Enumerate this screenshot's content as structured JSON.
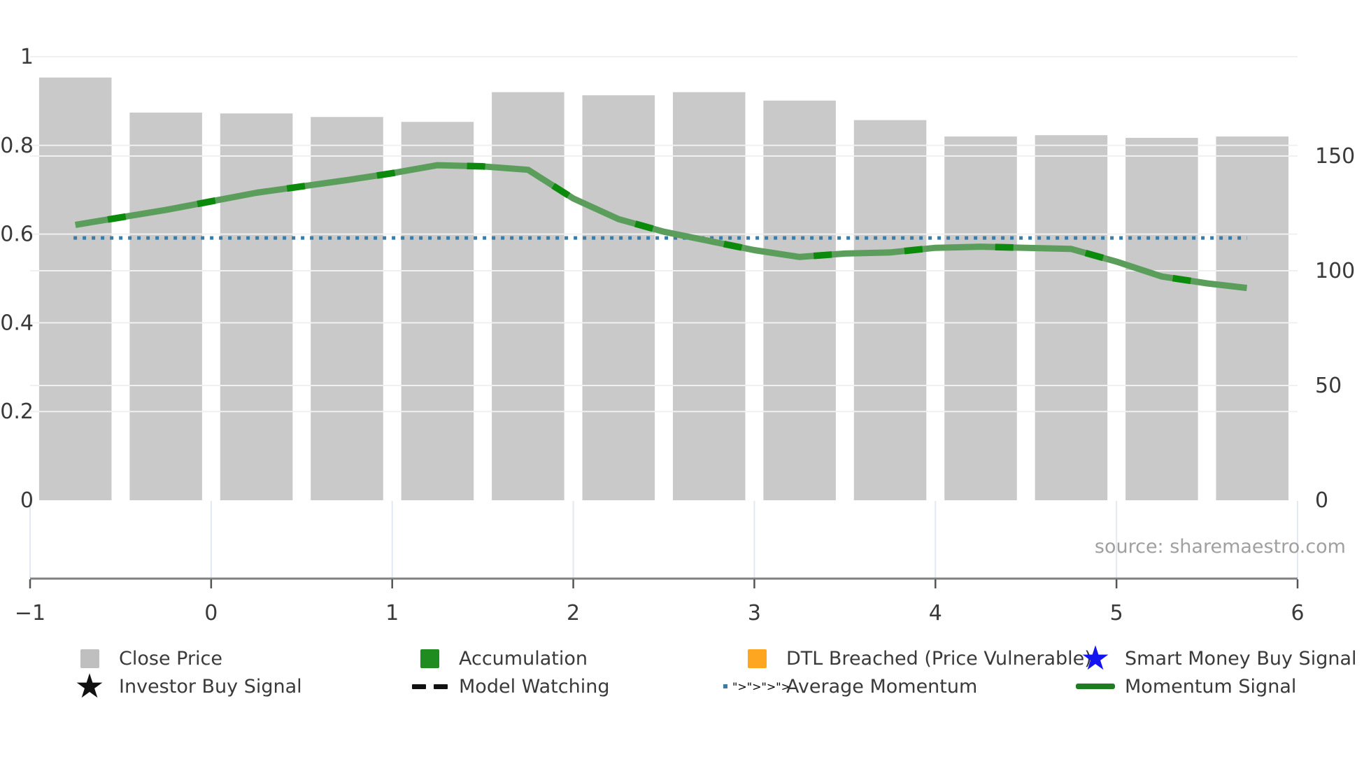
{
  "source": {
    "label": "source: sharemaestro.com"
  },
  "colors": {
    "bar": "#c9c9c9",
    "momentum_line": "#5b9e5b",
    "accumulation_dash": "#0c8a0c",
    "average_momentum": "#3a7ca8",
    "gridline": "#f0f0f0",
    "lower_gridline": "#e2e8f4",
    "axis_spine": "#808080",
    "axis_tick": "#555555",
    "axis_text": "#3a3a3a",
    "legend_close_price": "#bfbfbf",
    "legend_accumulation": "#1e8c1e",
    "legend_dtl_breached": "#ffa621",
    "legend_smart_money_star": "#1414f0",
    "legend_investor_star": "#111111",
    "legend_model_watching": "#111111",
    "legend_momentum_signal": "#1e7d1e"
  },
  "chart_data": {
    "type": "bar+line",
    "grid": true,
    "legend_position": "bottom",
    "x_axis": {
      "range": [
        -1,
        6
      ],
      "ticks": [
        -1,
        0,
        1,
        2,
        3,
        4,
        5,
        6
      ],
      "tick_labels": [
        "−1",
        "0",
        "1",
        "2",
        "3",
        "4",
        "5",
        "6"
      ]
    },
    "left_axis": {
      "range": [
        0,
        1.05
      ],
      "ticks": [
        0,
        0.2,
        0.4,
        0.6,
        0.8,
        1
      ],
      "tick_labels": [
        "0",
        "0.2",
        "0.4",
        "0.6",
        "0.8",
        "1"
      ],
      "grid_ticks": [
        0.2,
        0.4,
        0.6,
        0.8,
        1.0
      ]
    },
    "right_axis": {
      "range": [
        0,
        204
      ],
      "ticks": [
        0,
        50,
        100,
        150
      ],
      "tick_labels": [
        "0",
        "50",
        "100",
        "150"
      ],
      "grid_ticks": [
        50,
        100,
        150
      ]
    },
    "series": [
      {
        "name": "Close Price",
        "type": "bar",
        "axis": "left",
        "bar_width": 0.4,
        "x": [
          -0.75,
          -0.25,
          0.25,
          0.75,
          1.25,
          1.75,
          2.25,
          2.75,
          3.25,
          3.75,
          4.25,
          4.75,
          5.25,
          5.75
        ],
        "values": [
          0.953,
          0.874,
          0.872,
          0.864,
          0.853,
          0.92,
          0.913,
          0.92,
          0.901,
          0.857,
          0.82,
          0.823,
          0.817,
          0.82
        ]
      },
      {
        "name": "Momentum Signal",
        "type": "line",
        "axis": "right",
        "x": [
          -0.75,
          -0.25,
          0.25,
          0.75,
          1.0,
          1.25,
          1.5,
          1.75,
          2.0,
          2.25,
          2.5,
          2.75,
          3.0,
          3.25,
          3.5,
          3.75,
          4.0,
          4.25,
          4.5,
          4.75,
          5.0,
          5.25,
          5.5,
          5.72
        ],
        "values": [
          120,
          126.5,
          134,
          139.5,
          142.5,
          146,
          145.5,
          144,
          131.5,
          122.5,
          117,
          113,
          109,
          106,
          107.5,
          108,
          110,
          110.5,
          110,
          109.5,
          104,
          97.5,
          94.5,
          92.5
        ]
      },
      {
        "name": "Average Momentum",
        "type": "hline",
        "axis": "right",
        "value": 114.3,
        "x_start": -0.76,
        "x_end": 5.72
      }
    ]
  },
  "legend": {
    "items": [
      {
        "label": "Close Price",
        "marker": "square",
        "color": "#bfbfbf"
      },
      {
        "label": "Accumulation",
        "marker": "square",
        "color": "#1e8c1e"
      },
      {
        "label": "DTL Breached (Price Vulnerable)",
        "marker": "square",
        "color": "#ffa621"
      },
      {
        "label": "Smart Money Buy Signal",
        "marker": "star",
        "color": "#1414f0"
      },
      {
        "label": "Investor Buy Signal",
        "marker": "star",
        "color": "#111111"
      },
      {
        "label": "Model Watching",
        "marker": "dashes",
        "color": "#111111"
      },
      {
        "label": "Average Momentum",
        "marker": "dots",
        "color": "#3a7ca8"
      },
      {
        "label": "Momentum Signal",
        "marker": "line",
        "color": "#1e7d1e"
      }
    ]
  }
}
